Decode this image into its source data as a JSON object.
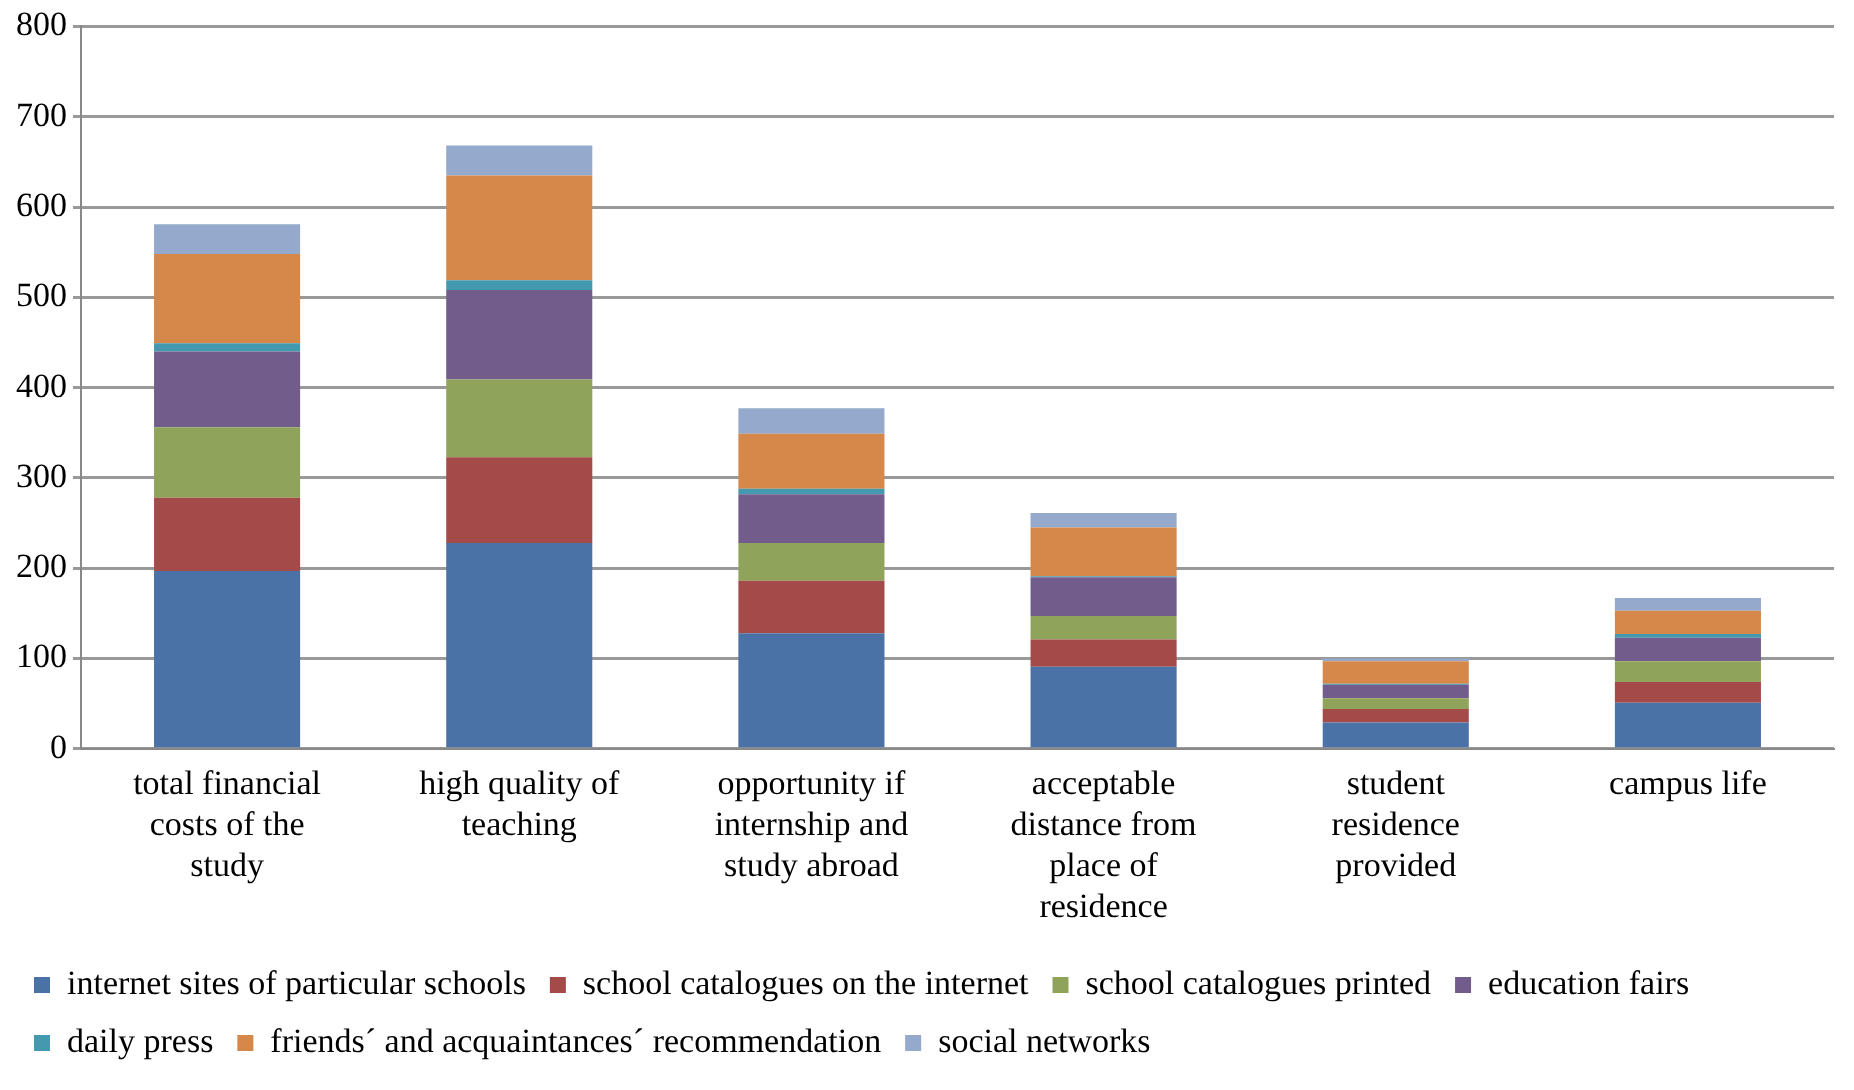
{
  "chart_data": {
    "type": "bar",
    "stacked": true,
    "categories": [
      "total financial costs of the study",
      "high quality of teaching",
      "opportunity if internship and study abroad",
      "acceptable distance from place of residence",
      "student residence provided",
      "campus life"
    ],
    "series": [
      {
        "name": "internet sites of particular schools",
        "color": "#4a72a6",
        "values": [
          197,
          228,
          128,
          91,
          29,
          51
        ]
      },
      {
        "name": "school catalogues on the internet",
        "color": "#a44b4a",
        "values": [
          81,
          95,
          58,
          30,
          15,
          23
        ]
      },
      {
        "name": "school catalogues printed",
        "color": "#90a35a",
        "values": [
          78,
          86,
          42,
          26,
          12,
          23
        ]
      },
      {
        "name": "education fairs",
        "color": "#725c8c",
        "values": [
          84,
          99,
          54,
          43,
          15,
          26
        ]
      },
      {
        "name": "daily press",
        "color": "#4399ae",
        "values": [
          9,
          11,
          6,
          1,
          1,
          4
        ]
      },
      {
        "name": "friends´ and acquaintances´ recommendation",
        "color": "#d6874a",
        "values": [
          99,
          116,
          61,
          54,
          25,
          26
        ]
      },
      {
        "name": "social networks",
        "color": "#94a9cc",
        "values": [
          33,
          33,
          28,
          16,
          3,
          14
        ]
      }
    ],
    "ylim": [
      0,
      800
    ],
    "yticks": [
      0,
      100,
      200,
      300,
      400,
      500,
      600,
      700,
      800
    ],
    "grid": "y",
    "legend": "bottom"
  }
}
